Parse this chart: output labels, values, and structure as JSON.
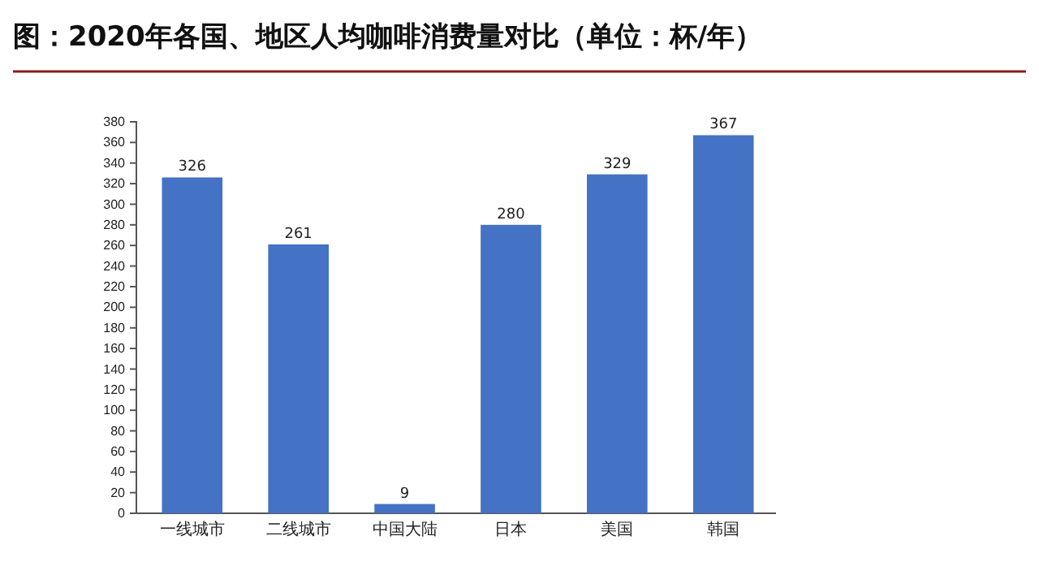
{
  "chart_data": {
    "type": "bar",
    "title": "图：2020年各国、地区人均咖啡消费量对比（单位：杯/年）",
    "categories": [
      "一线城市",
      "二线城市",
      "中国大陆",
      "日本",
      "美国",
      "韩国"
    ],
    "values": [
      326,
      261,
      9,
      280,
      329,
      367
    ],
    "color": "#4472c4",
    "ylim": [
      0,
      380
    ],
    "yticks": [
      0,
      20,
      40,
      60,
      80,
      100,
      120,
      140,
      160,
      180,
      200,
      220,
      240,
      260,
      280,
      300,
      320,
      340,
      360,
      380
    ],
    "grid": false,
    "data_labels": true
  }
}
